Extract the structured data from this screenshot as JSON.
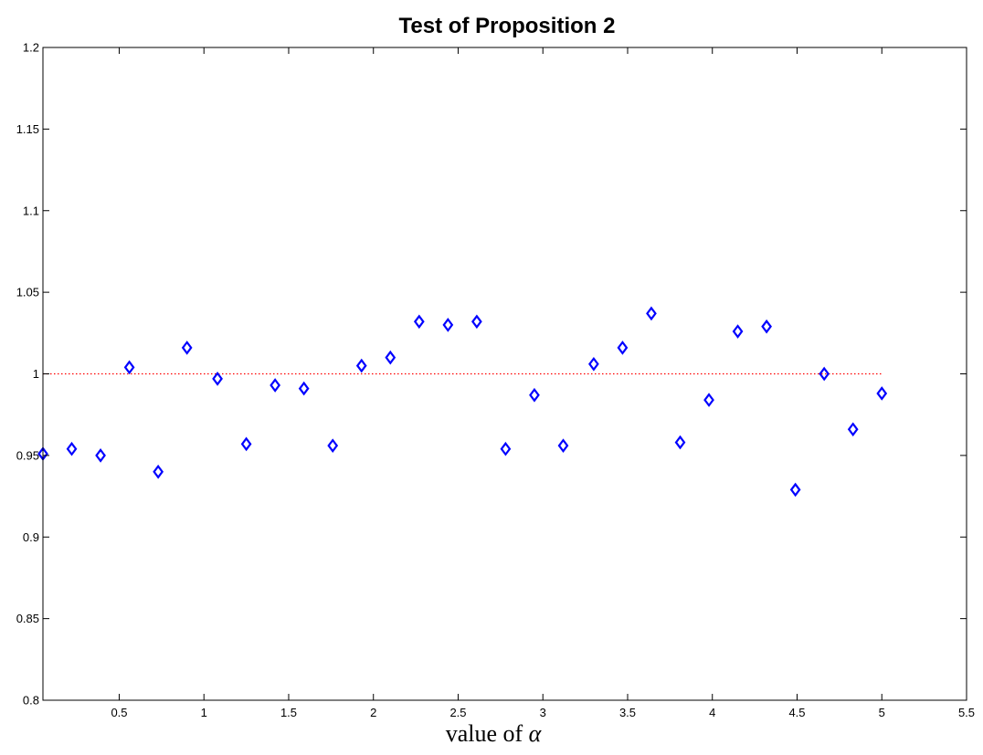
{
  "chart_data": {
    "type": "scatter",
    "title": "Test of Proposition 2",
    "xlabel": "value of ",
    "xlabel_symbol": "α",
    "ylabel": "",
    "xlim": [
      0.05,
      5.5
    ],
    "ylim": [
      0.8,
      1.2
    ],
    "xticks": [
      0.5,
      1,
      1.5,
      2,
      2.5,
      3,
      3.5,
      4,
      4.5,
      5,
      5.5
    ],
    "xtick_labels": [
      "0.5",
      "1",
      "1.5",
      "2",
      "2.5",
      "3",
      "3.5",
      "4",
      "4.5",
      "5",
      "5.5"
    ],
    "yticks": [
      0.8,
      0.85,
      0.9,
      0.95,
      1,
      1.05,
      1.1,
      1.15,
      1.2
    ],
    "ytick_labels": [
      "0.8",
      "0.85",
      "0.9",
      "0.95",
      "1",
      "1.05",
      "1.1",
      "1.15",
      "1.2"
    ],
    "grid": false,
    "marker": "diamond",
    "marker_color": "#0000ff",
    "reference_line": {
      "y": 1,
      "x_range": [
        0.05,
        5
      ],
      "style": "dotted",
      "color": "#ff0000"
    },
    "series": [
      {
        "x": [
          0.05,
          0.22,
          0.39,
          0.56,
          0.73,
          0.9,
          1.08,
          1.25,
          1.42,
          1.59,
          1.76,
          1.93,
          2.1,
          2.27,
          2.44,
          2.61,
          2.78,
          2.95,
          3.12,
          3.3,
          3.47,
          3.64,
          3.81,
          3.98,
          4.15,
          4.32,
          4.49,
          4.66,
          4.83,
          5.0
        ],
        "y": [
          0.951,
          0.954,
          0.95,
          1.004,
          0.94,
          1.016,
          0.997,
          0.957,
          0.993,
          0.991,
          0.956,
          1.005,
          1.01,
          1.032,
          1.03,
          1.032,
          0.954,
          0.987,
          0.956,
          1.006,
          1.016,
          1.037,
          0.958,
          0.984,
          1.026,
          1.029,
          0.929,
          1.0,
          0.966,
          0.988
        ]
      }
    ]
  }
}
